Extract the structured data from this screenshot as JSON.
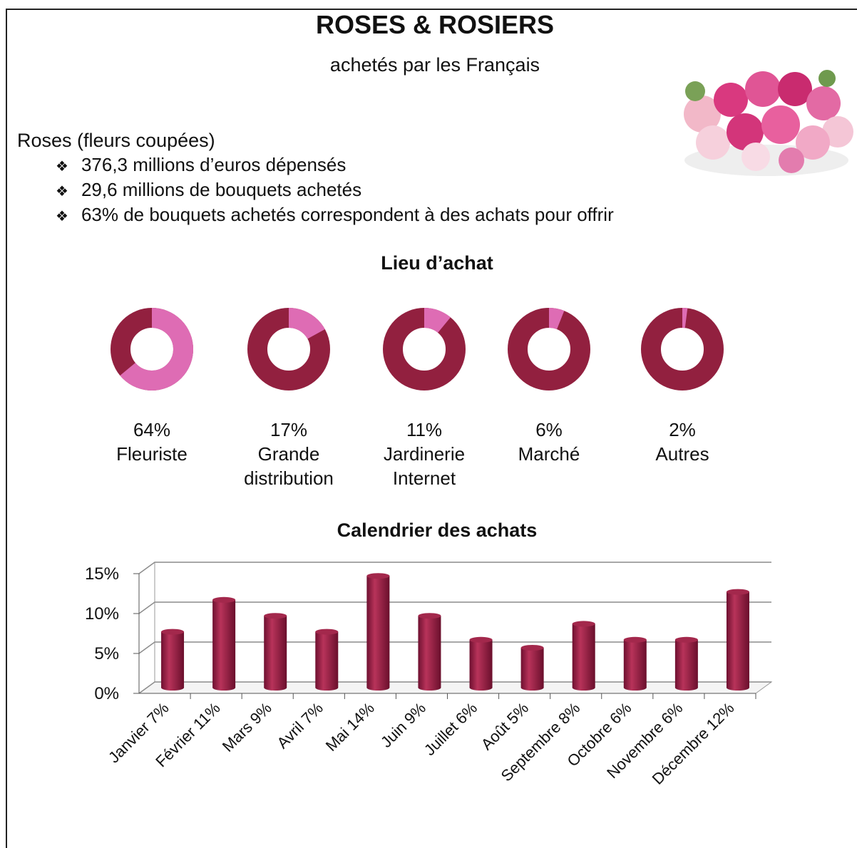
{
  "header": {
    "title": "ROSES & ROSIERS",
    "subtitle": "achetés par les Français"
  },
  "section": {
    "heading": "Roses (fleurs coupées)",
    "bullets": [
      "376,3 millions d’euros dépensés",
      "29,6 millions de bouquets achetés",
      "63%  de bouquets achetés correspondent à des achats pour offrir"
    ]
  },
  "chart_data": [
    {
      "type": "donut",
      "title": "Lieu d’achat",
      "categories": [
        "Fleuriste",
        "Grande distribution",
        "Jardinerie Internet",
        "Marché",
        "Autres"
      ],
      "values": [
        64,
        17,
        11,
        6,
        2
      ],
      "value_labels": [
        "64%",
        "17%",
        "11%",
        "6%",
        "2%"
      ],
      "color": "#de6cb4",
      "rest_color": "#92203f"
    },
    {
      "type": "bar",
      "title": "Calendrier des achats",
      "categories": [
        "Janvier 7%",
        "Février 11%",
        "Mars 9%",
        "Avril 7%",
        "Mai 14%",
        "Juin 9%",
        "Juillet 6%",
        "Août 5%",
        "Septembre 8%",
        "Octobre 6%",
        "Novembre 6%",
        "Décembre 12%"
      ],
      "values": [
        7,
        11,
        9,
        7,
        14,
        9,
        6,
        5,
        8,
        6,
        6,
        12
      ],
      "color": "#92203f",
      "ylim": [
        0,
        15
      ],
      "yticks": [
        {
          "value": 0,
          "label": "0%"
        },
        {
          "value": 5,
          "label": "5%"
        },
        {
          "value": 10,
          "label": "10%"
        },
        {
          "value": 15,
          "label": "15%"
        }
      ],
      "grid": true
    }
  ]
}
